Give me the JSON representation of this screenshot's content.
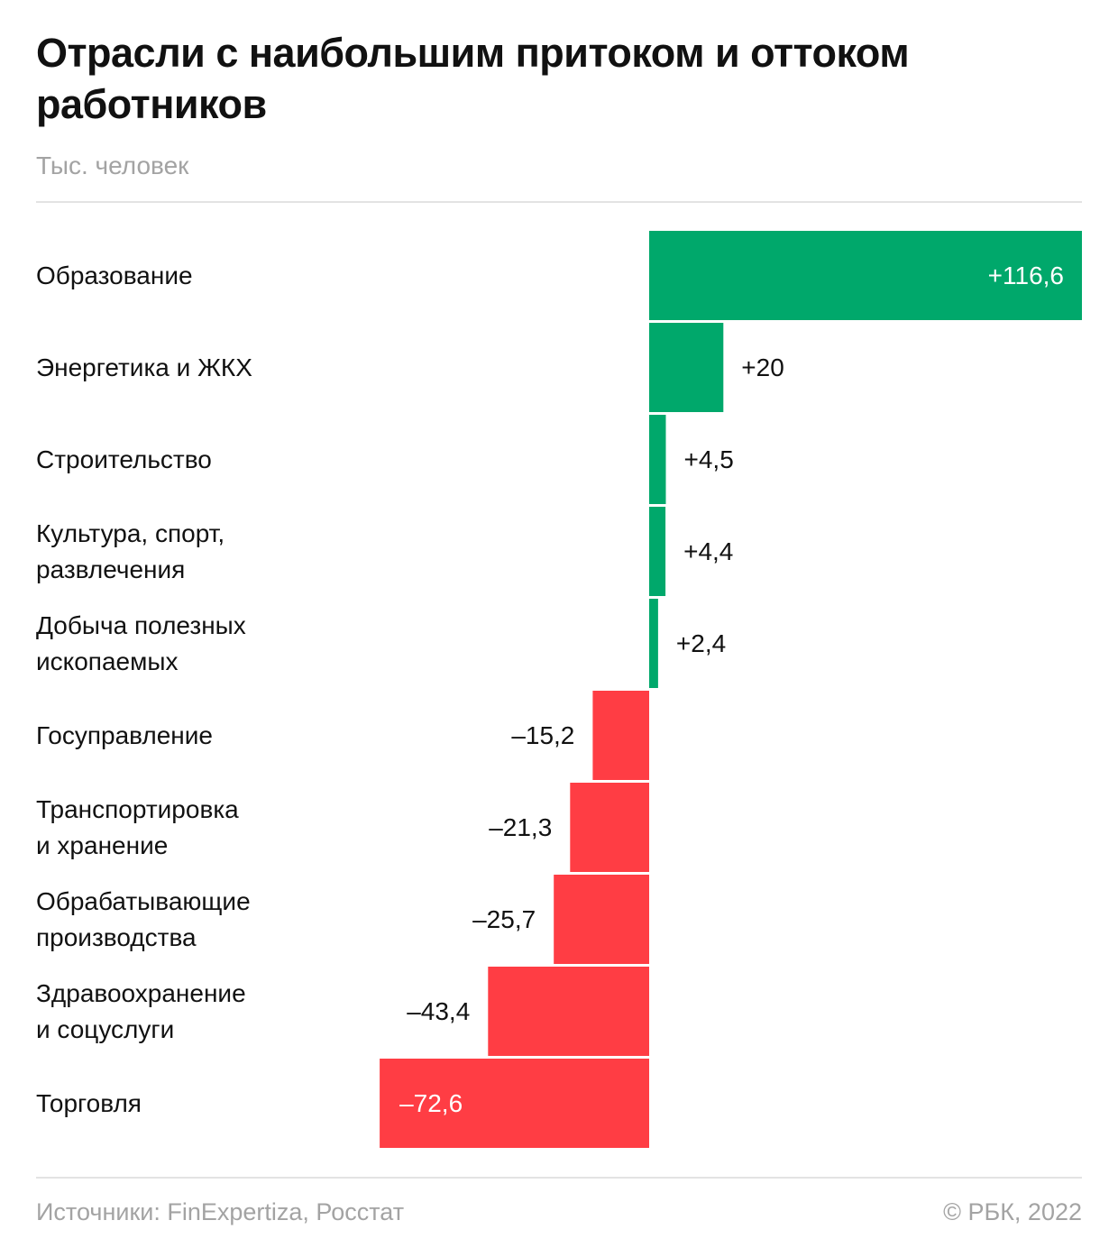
{
  "header": {
    "title": "Отрасли с наибольшим притоком и оттоком работников",
    "subtitle": "Тыс. человек"
  },
  "footer": {
    "source": "Источники: FinExpertiza, Росстат",
    "copyright": "© РБК, 2022"
  },
  "colors": {
    "positive": "#00a86b",
    "negative": "#ff3d44",
    "text": "#111111",
    "muted": "#a3a3a3",
    "inside_label": "#ffffff"
  },
  "chart_data": {
    "type": "bar",
    "orientation": "horizontal",
    "categories": [
      [
        "Образование"
      ],
      [
        "Энергетика и ЖКХ"
      ],
      [
        "Строительство"
      ],
      [
        "Культура, спорт,",
        "развлечения"
      ],
      [
        "Добыча полезных",
        "ископаемых"
      ],
      [
        "Госуправление"
      ],
      [
        "Транспортировка",
        "и хранение"
      ],
      [
        "Обрабатывающие",
        "производства"
      ],
      [
        "Здравоохранение",
        "и соцуслуги"
      ],
      [
        "Торговля"
      ]
    ],
    "values": [
      116.6,
      20,
      4.5,
      4.4,
      2.4,
      -15.2,
      -21.3,
      -25.7,
      -43.4,
      -72.6
    ],
    "value_labels": [
      "+116,6",
      "+20",
      "+4,5",
      "+4,4",
      "+2,4",
      "–15,2",
      "–21,3",
      "–25,7",
      "–43,4",
      "–72,6"
    ],
    "xlim": [
      -72.6,
      116.6
    ],
    "grid": false,
    "legend": "none"
  }
}
